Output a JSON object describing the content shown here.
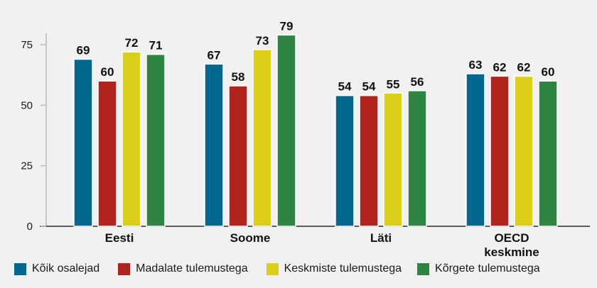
{
  "chart_data": {
    "type": "bar",
    "categories": [
      "Eesti",
      "Soome",
      "Läti",
      "OECD keskmine"
    ],
    "series": [
      {
        "name": "Kõik osalejad",
        "values": [
          69,
          67,
          54,
          63
        ],
        "color": "#00688f"
      },
      {
        "name": "Madalate tulemustega",
        "values": [
          60,
          58,
          54,
          62
        ],
        "color": "#b1231d"
      },
      {
        "name": "Keskmiste tulemustega",
        "values": [
          72,
          73,
          55,
          62
        ],
        "color": "#dccf1a"
      },
      {
        "name": "Kõrgete tulemustega",
        "values": [
          71,
          79,
          56,
          60
        ],
        "color": "#2f8441"
      }
    ],
    "y_ticks": [
      0,
      25,
      50,
      75
    ],
    "ylim": [
      0,
      80
    ],
    "grid": false,
    "legend_position": "bottom",
    "title": "",
    "xlabel": "",
    "ylabel": ""
  }
}
